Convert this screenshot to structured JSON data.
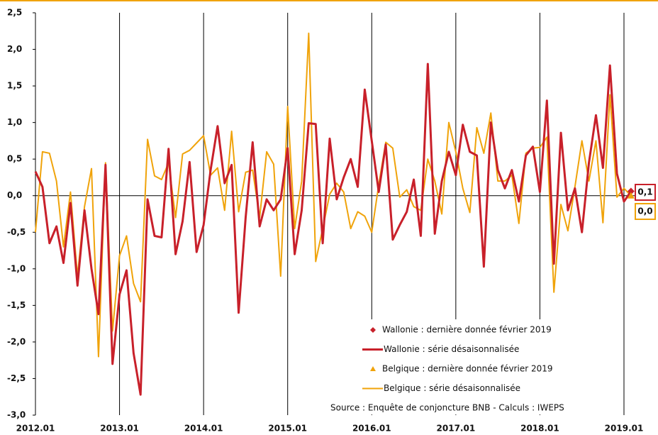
{
  "chart_data": {
    "type": "line",
    "categories": [
      "2012.01",
      null,
      null,
      null,
      null,
      null,
      null,
      null,
      null,
      null,
      null,
      null,
      "2013.01",
      null,
      null,
      null,
      null,
      null,
      null,
      null,
      null,
      null,
      null,
      null,
      "2014.01",
      null,
      null,
      null,
      null,
      null,
      null,
      null,
      null,
      null,
      null,
      null,
      "2015.01",
      null,
      null,
      null,
      null,
      null,
      null,
      null,
      null,
      null,
      null,
      null,
      "2016.01",
      null,
      null,
      null,
      null,
      null,
      null,
      null,
      null,
      null,
      null,
      null,
      "2017.01",
      null,
      null,
      null,
      null,
      null,
      null,
      null,
      null,
      null,
      null,
      null,
      "2018.01",
      null,
      null,
      null,
      null,
      null,
      null,
      null,
      null,
      null,
      null,
      null,
      "2019.01",
      null
    ],
    "series": [
      {
        "name": "Wallonie : dernière donnée février 2019",
        "color": "#c8202a",
        "marker": "diamond",
        "values": [
          null,
          null,
          null,
          null,
          null,
          null,
          null,
          null,
          null,
          null,
          null,
          null,
          null,
          null,
          null,
          null,
          null,
          null,
          null,
          null,
          null,
          null,
          null,
          null,
          null,
          null,
          null,
          null,
          null,
          null,
          null,
          null,
          null,
          null,
          null,
          null,
          null,
          null,
          null,
          null,
          null,
          null,
          null,
          null,
          null,
          null,
          null,
          null,
          null,
          null,
          null,
          null,
          null,
          null,
          null,
          null,
          null,
          null,
          null,
          null,
          null,
          null,
          null,
          null,
          null,
          null,
          null,
          null,
          null,
          null,
          null,
          null,
          null,
          null,
          null,
          null,
          null,
          null,
          null,
          null,
          null,
          null,
          null,
          null,
          null,
          0.06
        ],
        "value_labels": [
          null,
          null,
          null,
          null,
          null,
          null,
          null,
          null,
          null,
          null,
          null,
          null,
          null,
          null,
          null,
          null,
          null,
          null,
          null,
          null,
          null,
          null,
          null,
          null,
          null,
          null,
          null,
          null,
          null,
          null,
          null,
          null,
          null,
          null,
          null,
          null,
          null,
          null,
          null,
          null,
          null,
          null,
          null,
          null,
          null,
          null,
          null,
          null,
          null,
          null,
          null,
          null,
          null,
          null,
          null,
          null,
          null,
          null,
          null,
          null,
          null,
          null,
          null,
          null,
          null,
          null,
          null,
          null,
          null,
          null,
          null,
          null,
          null,
          null,
          null,
          null,
          null,
          null,
          null,
          null,
          null,
          null,
          null,
          null,
          null,
          "0,1"
        ]
      },
      {
        "name": "Wallonie : série désaisonnalisée",
        "color": "#c8202a",
        "values": [
          0.33,
          0.12,
          -0.65,
          -0.42,
          -0.92,
          -0.1,
          -1.23,
          -0.2,
          -1.0,
          -1.62,
          0.42,
          -2.3,
          -1.35,
          -1.02,
          -2.15,
          -2.72,
          -0.05,
          -0.55,
          -0.57,
          0.64,
          -0.8,
          -0.35,
          0.46,
          -0.77,
          -0.4,
          0.35,
          0.95,
          0.17,
          0.42,
          -1.6,
          -0.3,
          0.73,
          -0.42,
          -0.05,
          -0.2,
          -0.05,
          0.65,
          -0.8,
          -0.2,
          0.99,
          0.98,
          -0.65,
          0.78,
          -0.05,
          0.25,
          0.5,
          0.12,
          1.45,
          0.75,
          0.05,
          0.7,
          -0.6,
          -0.4,
          -0.22,
          0.22,
          -0.55,
          1.8,
          -0.52,
          0.2,
          0.6,
          0.28,
          0.97,
          0.6,
          0.55,
          -0.97,
          1.0,
          0.35,
          0.1,
          0.35,
          -0.08,
          0.55,
          0.67,
          0.05,
          1.3,
          -0.93,
          0.86,
          -0.2,
          0.1,
          -0.5,
          0.45,
          1.1,
          0.38,
          1.78,
          0.3,
          -0.08,
          0.06
        ]
      },
      {
        "name": "Belgique : dernière donnée février 2019",
        "color": "#f0a30a",
        "marker": "triangle",
        "values": [
          null,
          null,
          null,
          null,
          null,
          null,
          null,
          null,
          null,
          null,
          null,
          null,
          null,
          null,
          null,
          null,
          null,
          null,
          null,
          null,
          null,
          null,
          null,
          null,
          null,
          null,
          null,
          null,
          null,
          null,
          null,
          null,
          null,
          null,
          null,
          null,
          null,
          null,
          null,
          null,
          null,
          null,
          null,
          null,
          null,
          null,
          null,
          null,
          null,
          null,
          null,
          null,
          null,
          null,
          null,
          null,
          null,
          null,
          null,
          null,
          null,
          null,
          null,
          null,
          null,
          null,
          null,
          null,
          null,
          null,
          null,
          null,
          null,
          null,
          null,
          null,
          null,
          null,
          null,
          null,
          null,
          null,
          null,
          null,
          null,
          0.0
        ],
        "value_labels": [
          null,
          null,
          null,
          null,
          null,
          null,
          null,
          null,
          null,
          null,
          null,
          null,
          null,
          null,
          null,
          null,
          null,
          null,
          null,
          null,
          null,
          null,
          null,
          null,
          null,
          null,
          null,
          null,
          null,
          null,
          null,
          null,
          null,
          null,
          null,
          null,
          null,
          null,
          null,
          null,
          null,
          null,
          null,
          null,
          null,
          null,
          null,
          null,
          null,
          null,
          null,
          null,
          null,
          null,
          null,
          null,
          null,
          null,
          null,
          null,
          null,
          null,
          null,
          null,
          null,
          null,
          null,
          null,
          null,
          null,
          null,
          null,
          null,
          null,
          null,
          null,
          null,
          null,
          null,
          null,
          null,
          null,
          null,
          null,
          null,
          "0,0"
        ]
      },
      {
        "name": "Belgique : série désaisonnalisée",
        "color": "#f0a30a",
        "values": [
          -0.5,
          0.6,
          0.58,
          0.2,
          -0.7,
          0.05,
          -1.1,
          -0.15,
          0.37,
          -2.2,
          0.45,
          -1.85,
          -0.82,
          -0.55,
          -1.2,
          -1.45,
          0.77,
          0.27,
          0.22,
          0.45,
          -0.3,
          0.57,
          0.62,
          0.72,
          0.82,
          0.28,
          0.38,
          -0.2,
          0.88,
          -0.22,
          0.32,
          0.35,
          -0.3,
          0.6,
          0.43,
          -1.1,
          1.22,
          -0.45,
          0.2,
          2.22,
          -0.9,
          -0.45,
          0.02,
          0.17,
          0.05,
          -0.45,
          -0.22,
          -0.28,
          -0.5,
          0.15,
          0.73,
          0.65,
          -0.02,
          0.08,
          -0.15,
          -0.2,
          0.5,
          0.2,
          -0.25,
          1.0,
          0.6,
          0.1,
          -0.23,
          0.93,
          0.58,
          1.13,
          0.2,
          0.2,
          0.28,
          -0.38,
          0.58,
          0.65,
          0.66,
          0.8,
          -1.32,
          -0.12,
          -0.48,
          0.12,
          0.75,
          0.2,
          0.75,
          -0.37,
          1.38,
          -0.02,
          0.1,
          0.0
        ]
      }
    ],
    "source": "Source : Enquête de conjoncture BNB - Calculs : IWEPS",
    "ylim": [
      -3.0,
      2.5
    ],
    "yticks": [
      {
        "value": -3.0,
        "label": "-3,0"
      },
      {
        "value": -2.5,
        "label": "-2,5"
      },
      {
        "value": -2.0,
        "label": "-2,0"
      },
      {
        "value": -1.5,
        "label": "-1,5"
      },
      {
        "value": -1.0,
        "label": "-1,0"
      },
      {
        "value": -0.5,
        "label": "-0,5"
      },
      {
        "value": 0.0,
        "label": "0,0"
      },
      {
        "value": 0.5,
        "label": "0,5"
      },
      {
        "value": 1.0,
        "label": "1,0"
      },
      {
        "value": 1.5,
        "label": "1,5"
      },
      {
        "value": 2.0,
        "label": "2,0"
      },
      {
        "value": 2.5,
        "label": "2,5"
      }
    ]
  }
}
